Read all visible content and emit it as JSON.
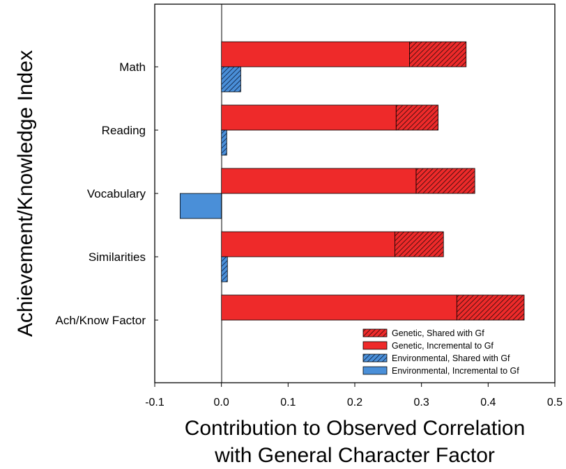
{
  "chart_data": {
    "type": "bar",
    "orientation": "horizontal",
    "stacked": true,
    "title": "",
    "xlabel_line1": "Contribution to Observed Correlation",
    "xlabel_line2": "with General Character Factor",
    "ylabel": "Achievement/Knowledge Index",
    "xlim": [
      -0.1,
      0.5
    ],
    "xticks": [
      "-0.1",
      "0.0",
      "0.1",
      "0.2",
      "0.3",
      "0.4",
      "0.5"
    ],
    "categories": [
      "Math",
      "Reading",
      "Vocabulary",
      "Similarities",
      "Ach/Know Factor"
    ],
    "series": [
      {
        "name": "Genetic, Incremental to Gf",
        "group": "genetic",
        "color": "#ee2a2a",
        "hatched": false,
        "values": [
          0.282,
          0.262,
          0.292,
          0.26,
          0.353
        ]
      },
      {
        "name": "Genetic, Shared with Gf",
        "group": "genetic",
        "color": "#ee2a2a",
        "hatched": true,
        "values": [
          0.085,
          0.063,
          0.088,
          0.073,
          0.101
        ]
      },
      {
        "name": "Environmental, Incremental to Gf",
        "group": "environmental",
        "color": "#4a8fd8",
        "hatched": false,
        "values": [
          0.0,
          0.0,
          -0.062,
          0.0,
          0.0
        ]
      },
      {
        "name": "Environmental, Shared with Gf",
        "group": "environmental",
        "color": "#4a8fd8",
        "hatched": true,
        "values": [
          0.029,
          0.008,
          0.0,
          0.009,
          0.0
        ]
      }
    ],
    "legend": {
      "position": "bottom-right",
      "entries": [
        {
          "label": "Genetic, Shared with Gf",
          "color": "#ee2a2a",
          "hatched": true
        },
        {
          "label": "Genetic, Incremental to Gf",
          "color": "#ee2a2a",
          "hatched": false
        },
        {
          "label": "Environmental, Shared with Gf",
          "color": "#4a8fd8",
          "hatched": true
        },
        {
          "label": "Environmental, Incremental to Gf",
          "color": "#4a8fd8",
          "hatched": false
        }
      ]
    },
    "grid": false
  }
}
